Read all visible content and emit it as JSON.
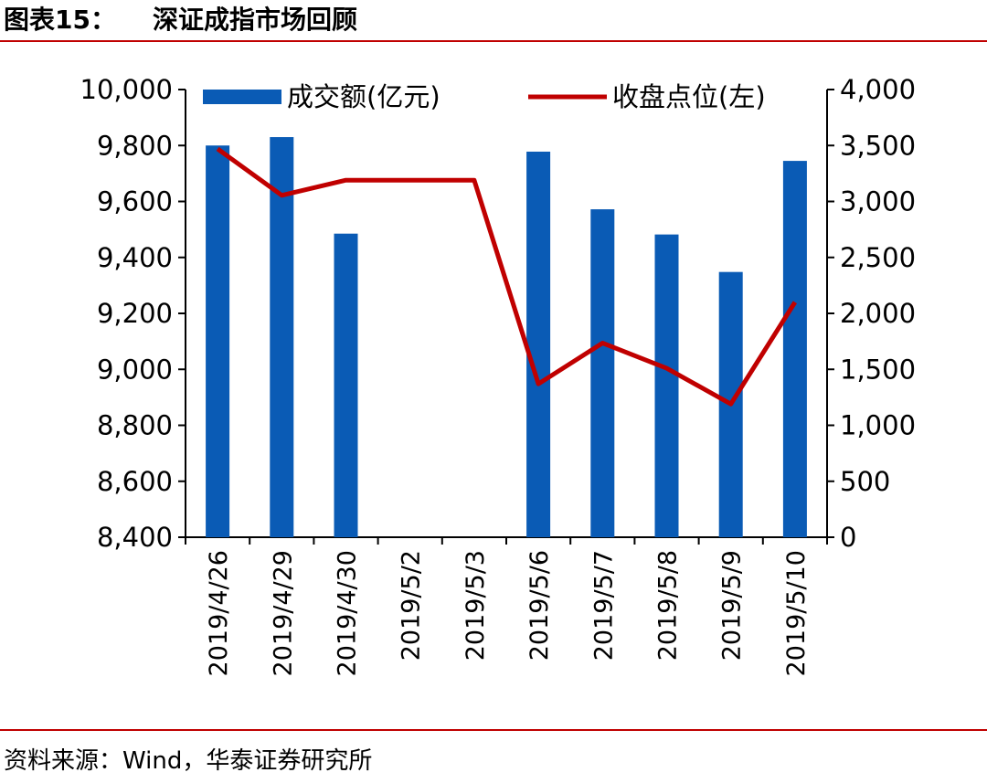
{
  "figure": {
    "label": "图表15：",
    "title": "深证成指市场回顾",
    "source": "资料来源：Wind，华泰证券研究所"
  },
  "colors": {
    "bar": "#0a5bb5",
    "line": "#c00000",
    "rule": "#c00000"
  },
  "chart_data": {
    "type": "bar",
    "categories": [
      "2019/4/26",
      "2019/4/29",
      "2019/4/30",
      "2019/5/2",
      "2019/5/3",
      "2019/5/6",
      "2019/5/7",
      "2019/5/8",
      "2019/5/9",
      "2019/5/10"
    ],
    "series": [
      {
        "name": "成交额(亿元)",
        "type": "bar",
        "axis": "left",
        "values": [
          9800,
          9830,
          9485,
          null,
          null,
          9778,
          9572,
          9482,
          9348,
          9745
        ]
      },
      {
        "name": "收盘点位(左)",
        "type": "line",
        "axis": "right",
        "values": [
          3470,
          3055,
          3190,
          3190,
          3190,
          1370,
          1735,
          1510,
          1190,
          2100
        ]
      }
    ],
    "ylim_left": [
      8400,
      10000
    ],
    "yticks_left": [
      "8,400",
      "8,600",
      "8,800",
      "9,000",
      "9,200",
      "9,400",
      "9,600",
      "9,800",
      "10,000"
    ],
    "ylim_right": [
      0,
      4000
    ],
    "yticks_right": [
      "0",
      "500",
      "1,000",
      "1,500",
      "2,000",
      "2,500",
      "3,000",
      "3,500",
      "4,000"
    ],
    "legend_position": "top",
    "grid": false
  }
}
